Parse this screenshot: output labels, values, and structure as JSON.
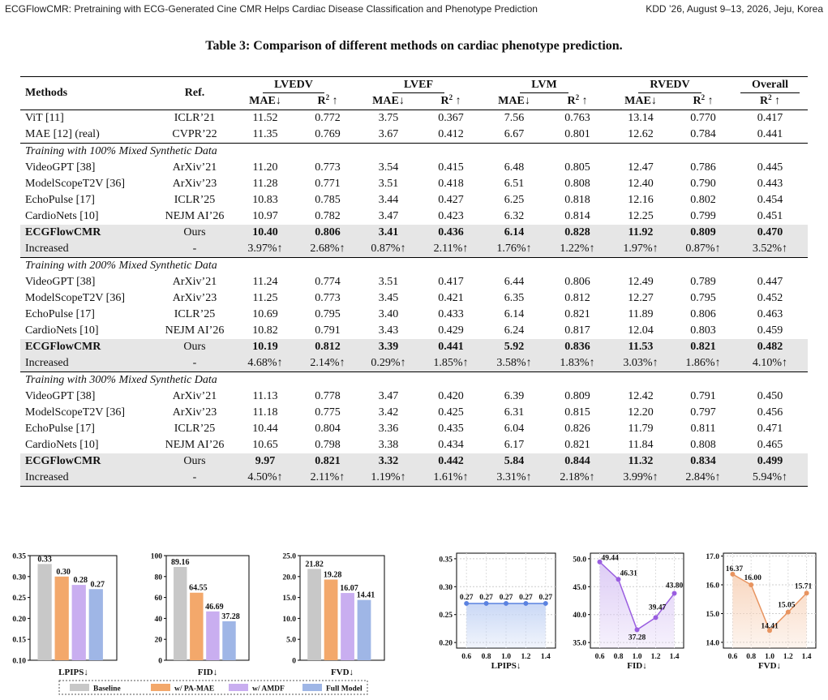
{
  "header": {
    "left": "ECGFlowCMR: Pretraining with ECG-Generated Cine CMR Helps Cardiac Disease Classification and Phenotype Prediction",
    "right": "KDD ’26, August 9–13, 2026, Jeju, Korea"
  },
  "table": {
    "caption": "Table 3: Comparison of different methods on cardiac phenotype prediction.",
    "col_methods": "Methods",
    "col_ref": "Ref.",
    "groups": [
      "LVEDV",
      "LVEF",
      "LVM",
      "RVEDV",
      "Overall"
    ],
    "sub_mae": "MAE↓",
    "sub_r2": "R",
    "sup2": "2",
    "arrow_up": " ↑",
    "baseline_rows": [
      {
        "m": "ViT [11]",
        "r": "ICLR’21",
        "v": [
          "11.52",
          "0.772",
          "3.75",
          "0.367",
          "7.56",
          "0.763",
          "13.14",
          "0.770",
          "0.417"
        ]
      },
      {
        "m": "MAE [12] (real)",
        "r": "CVPR’22",
        "v": [
          "11.35",
          "0.769",
          "3.67",
          "0.412",
          "6.67",
          "0.801",
          "12.62",
          "0.784",
          "0.441"
        ]
      }
    ],
    "sections": [
      {
        "title": "Training with 100% Mixed Synthetic Data",
        "rows": [
          {
            "m": "VideoGPT [38]",
            "r": "ArXiv’21",
            "v": [
              "11.20",
              "0.773",
              "3.54",
              "0.415",
              "6.48",
              "0.805",
              "12.47",
              "0.786",
              "0.445"
            ]
          },
          {
            "m": "ModelScopeT2V [36]",
            "r": "ArXiv’23",
            "v": [
              "11.28",
              "0.771",
              "3.51",
              "0.418",
              "6.51",
              "0.808",
              "12.40",
              "0.790",
              "0.443"
            ]
          },
          {
            "m": "EchoPulse [17]",
            "r": "ICLR’25",
            "v": [
              "10.83",
              "0.785",
              "3.44",
              "0.427",
              "6.25",
              "0.818",
              "12.16",
              "0.802",
              "0.454"
            ]
          },
          {
            "m": "CardioNets [10]",
            "r": "NEJM AI’26",
            "v": [
              "10.97",
              "0.782",
              "3.47",
              "0.423",
              "6.32",
              "0.814",
              "12.25",
              "0.799",
              "0.451"
            ]
          }
        ],
        "ours": {
          "m": "ECGFlowCMR",
          "r": "Ours",
          "v": [
            "10.40",
            "0.806",
            "3.41",
            "0.436",
            "6.14",
            "0.828",
            "11.92",
            "0.809",
            "0.470"
          ]
        },
        "inc": {
          "m": "Increased",
          "r": "-",
          "v": [
            "3.97%↑",
            "2.68%↑",
            "0.87%↑",
            "2.11%↑",
            "1.76%↑",
            "1.22%↑",
            "1.97%↑",
            "0.87%↑",
            "3.52%↑"
          ]
        }
      },
      {
        "title": "Training with 200% Mixed Synthetic Data",
        "rows": [
          {
            "m": "VideoGPT [38]",
            "r": "ArXiv’21",
            "v": [
              "11.24",
              "0.774",
              "3.51",
              "0.417",
              "6.44",
              "0.806",
              "12.49",
              "0.789",
              "0.447"
            ]
          },
          {
            "m": "ModelScopeT2V [36]",
            "r": "ArXiv’23",
            "v": [
              "11.25",
              "0.773",
              "3.45",
              "0.421",
              "6.35",
              "0.812",
              "12.27",
              "0.795",
              "0.452"
            ]
          },
          {
            "m": "EchoPulse [17]",
            "r": "ICLR’25",
            "v": [
              "10.69",
              "0.795",
              "3.40",
              "0.433",
              "6.14",
              "0.821",
              "11.89",
              "0.806",
              "0.463"
            ]
          },
          {
            "m": "CardioNets [10]",
            "r": "NEJM AI’26",
            "v": [
              "10.82",
              "0.791",
              "3.43",
              "0.429",
              "6.24",
              "0.817",
              "12.04",
              "0.803",
              "0.459"
            ]
          }
        ],
        "ours": {
          "m": "ECGFlowCMR",
          "r": "Ours",
          "v": [
            "10.19",
            "0.812",
            "3.39",
            "0.441",
            "5.92",
            "0.836",
            "11.53",
            "0.821",
            "0.482"
          ]
        },
        "inc": {
          "m": "Increased",
          "r": "-",
          "v": [
            "4.68%↑",
            "2.14%↑",
            "0.29%↑",
            "1.85%↑",
            "3.58%↑",
            "1.83%↑",
            "3.03%↑",
            "1.86%↑",
            "4.10%↑"
          ]
        }
      },
      {
        "title": "Training with 300% Mixed Synthetic Data",
        "rows": [
          {
            "m": "VideoGPT [38]",
            "r": "ArXiv’21",
            "v": [
              "11.13",
              "0.778",
              "3.47",
              "0.420",
              "6.39",
              "0.809",
              "12.42",
              "0.791",
              "0.450"
            ]
          },
          {
            "m": "ModelScopeT2V [36]",
            "r": "ArXiv’23",
            "v": [
              "11.18",
              "0.775",
              "3.42",
              "0.425",
              "6.31",
              "0.815",
              "12.20",
              "0.797",
              "0.456"
            ]
          },
          {
            "m": "EchoPulse [17]",
            "r": "ICLR’25",
            "v": [
              "10.44",
              "0.804",
              "3.36",
              "0.435",
              "6.04",
              "0.826",
              "11.79",
              "0.811",
              "0.471"
            ]
          },
          {
            "m": "CardioNets [10]",
            "r": "NEJM AI’26",
            "v": [
              "10.65",
              "0.798",
              "3.38",
              "0.434",
              "6.17",
              "0.821",
              "11.84",
              "0.808",
              "0.465"
            ]
          }
        ],
        "ours": {
          "m": "ECGFlowCMR",
          "r": "Ours",
          "v": [
            "9.97",
            "0.821",
            "3.32",
            "0.442",
            "5.84",
            "0.844",
            "11.32",
            "0.834",
            "0.499"
          ]
        },
        "inc": {
          "m": "Increased",
          "r": "-",
          "v": [
            "4.50%↑",
            "2.11%↑",
            "1.19%↑",
            "1.61%↑",
            "3.31%↑",
            "2.18%↑",
            "3.99%↑",
            "2.84%↑",
            "5.94%↑"
          ]
        }
      }
    ]
  },
  "legend": [
    "Baseline",
    "w/ PA-MAE",
    "w/ AMDF",
    "Full Model"
  ],
  "colors": {
    "bars": [
      "#c8c8c8",
      "#f3a86b",
      "#c9aef0",
      "#9fb6e6"
    ],
    "line_lpips": "#5b82e0",
    "line_fid": "#9a5ee0",
    "line_fvd": "#e89460"
  },
  "chart_data": [
    {
      "type": "bar",
      "xlabel": "LPIPS↓",
      "categories": [
        "Baseline",
        "w/ PA-MAE",
        "w/ AMDF",
        "Full Model"
      ],
      "values": [
        0.33,
        0.3,
        0.28,
        0.27
      ],
      "labels": [
        "0.33",
        "0.30",
        "0.28",
        "0.27"
      ],
      "ylim": [
        0.1,
        0.35
      ],
      "yticks": [
        "0.10",
        "0.15",
        "0.20",
        "0.25",
        "0.30",
        "0.35"
      ]
    },
    {
      "type": "bar",
      "xlabel": "FID↓",
      "categories": [
        "Baseline",
        "w/ PA-MAE",
        "w/ AMDF",
        "Full Model"
      ],
      "values": [
        89.16,
        64.55,
        46.69,
        37.28
      ],
      "labels": [
        "89.16",
        "64.55",
        "46.69",
        "37.28"
      ],
      "ylim": [
        0,
        100
      ],
      "yticks": [
        "0",
        "20",
        "40",
        "60",
        "80",
        "100"
      ]
    },
    {
      "type": "bar",
      "xlabel": "FVD↓",
      "categories": [
        "Baseline",
        "w/ PA-MAE",
        "w/ AMDF",
        "Full Model"
      ],
      "values": [
        21.82,
        19.28,
        16.07,
        14.41
      ],
      "labels": [
        "21.82",
        "19.28",
        "16.07",
        "14.41"
      ],
      "ylim": [
        0,
        25
      ],
      "yticks": [
        "0",
        "5.0",
        "10.0",
        "15.0",
        "20.0",
        "25.0"
      ]
    },
    {
      "type": "line",
      "xlabel": "LPIPS↓",
      "x": [
        0.6,
        0.8,
        1.0,
        1.2,
        1.4
      ],
      "xticks": [
        "0.6",
        "0.8",
        "1.0",
        "1.2",
        "1.4"
      ],
      "values": [
        0.27,
        0.27,
        0.27,
        0.27,
        0.27
      ],
      "labels": [
        "0.27",
        "0.27",
        "0.27",
        "0.27",
        "0.27"
      ],
      "ylim": [
        0.19,
        0.36
      ],
      "yticks": [
        "0.20",
        "0.25",
        "0.30",
        "0.35"
      ],
      "ytick_values": [
        0.2,
        0.25,
        0.3,
        0.35
      ]
    },
    {
      "type": "line",
      "xlabel": "FID↓",
      "x": [
        0.6,
        0.8,
        1.0,
        1.2,
        1.4
      ],
      "xticks": [
        "0.6",
        "0.8",
        "1.0",
        "1.2",
        "1.4"
      ],
      "values": [
        49.44,
        46.31,
        37.28,
        39.47,
        43.8
      ],
      "labels": [
        "49.44",
        "46.31",
        "37.28",
        "39.47",
        "43.80"
      ],
      "ylim": [
        34,
        51
      ],
      "yticks": [
        "35.0",
        "40.0",
        "45.0",
        "50.0"
      ],
      "ytick_values": [
        35,
        40,
        45,
        50
      ]
    },
    {
      "type": "line",
      "xlabel": "FVD↓",
      "x": [
        0.6,
        0.8,
        1.0,
        1.2,
        1.4
      ],
      "xticks": [
        "0.6",
        "0.8",
        "1.0",
        "1.2",
        "1.4"
      ],
      "values": [
        16.37,
        16.0,
        14.41,
        15.05,
        15.71
      ],
      "labels": [
        "16.37",
        "16.00",
        "14.41",
        "15.05",
        "15.71"
      ],
      "ylim": [
        13.8,
        17.1
      ],
      "yticks": [
        "14.0",
        "15.0",
        "16.0",
        "17.0"
      ],
      "ytick_values": [
        14,
        15,
        16,
        17
      ]
    }
  ]
}
